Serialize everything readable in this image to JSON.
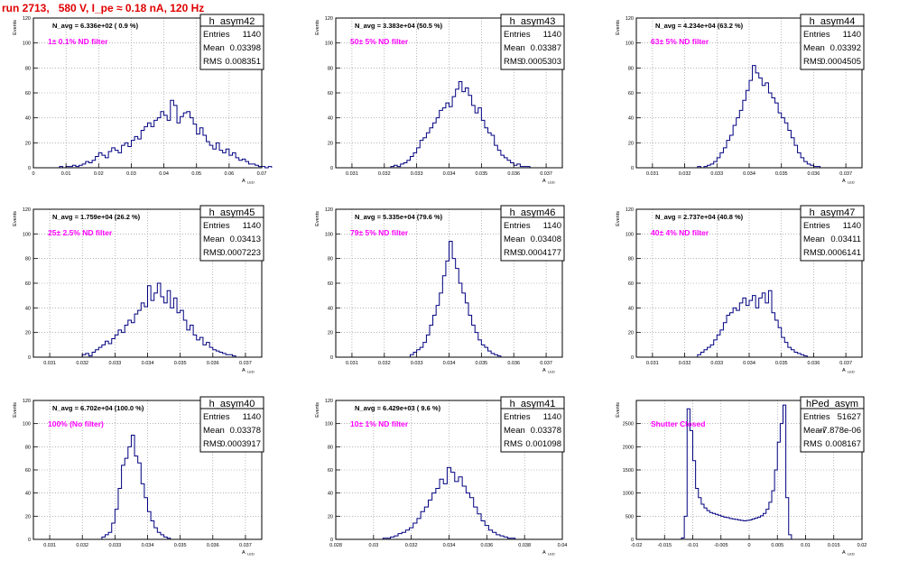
{
  "page": {
    "run_title": "run 2713,   580 V, I_pe ≈ 0.18 nA, 120 Hz"
  },
  "labels": {
    "y_axis": "Events",
    "x_axis": "A",
    "x_axis_sub": "LED"
  },
  "colors": {
    "histogram": "#000080",
    "annotation": "#ff00ff",
    "title": "#e00000",
    "grid": "#888888"
  },
  "chart_data": [
    {
      "type": "bar",
      "name": "h_asym42",
      "header": "N_avg = 6.336e+02 ( 0.9 %)",
      "filter": "1± 0.1% ND filter",
      "stats": [
        {
          "k": "Entries",
          "v": "1140"
        },
        {
          "k": "Mean",
          "v": "0.03398"
        },
        {
          "k": "RMS",
          "v": "0.008351"
        }
      ],
      "xlim": [
        0,
        0.07
      ],
      "ylim": [
        0,
        120
      ],
      "xticks": [
        "0",
        "0.01",
        "0.02",
        "0.03",
        "0.04",
        "0.05",
        "0.06",
        "0.07"
      ],
      "yticks": [
        "0",
        "20",
        "40",
        "60",
        "80",
        "100",
        "120"
      ],
      "grid": true,
      "stats_position": "top-right",
      "bins": {
        "start": 0.008,
        "width": 0.001,
        "counts": [
          1,
          0,
          1,
          1,
          2,
          1,
          2,
          3,
          5,
          4,
          6,
          9,
          12,
          10,
          8,
          13,
          16,
          14,
          12,
          18,
          20,
          17,
          22,
          25,
          23,
          30,
          33,
          36,
          33,
          38,
          40,
          45,
          42,
          38,
          54,
          50,
          36,
          41,
          44,
          45,
          40,
          35,
          27,
          32,
          26,
          21,
          18,
          15,
          20,
          14,
          12,
          15,
          10,
          12,
          8,
          6,
          7,
          5,
          3,
          3,
          2,
          1,
          1,
          0,
          1
        ]
      }
    },
    {
      "type": "bar",
      "name": "h_asym43",
      "header": "N_avg = 3.383e+04 (50.5 %)",
      "filter": "50± 5% ND filter",
      "stats": [
        {
          "k": "Entries",
          "v": "1140"
        },
        {
          "k": "Mean",
          "v": "0.03387"
        },
        {
          "k": "RMS",
          "v": "0.0005303"
        }
      ],
      "xlim": [
        0.0305,
        0.0375
      ],
      "ylim": [
        0,
        120
      ],
      "xticks": [
        "0.031",
        "0.032",
        "0.033",
        "0.034",
        "0.035",
        "0.036",
        "0.037"
      ],
      "yticks": [
        "0",
        "20",
        "40",
        "60",
        "80",
        "100",
        "120"
      ],
      "grid": true,
      "stats_position": "top-right",
      "bins": {
        "start": 0.0322,
        "width": 0.0001,
        "counts": [
          1,
          2,
          1,
          3,
          4,
          6,
          9,
          12,
          16,
          22,
          24,
          28,
          32,
          36,
          40,
          46,
          48,
          52,
          49,
          57,
          63,
          69,
          61,
          64,
          58,
          50,
          44,
          48,
          38,
          32,
          28,
          26,
          18,
          14,
          10,
          8,
          6,
          4,
          2,
          3,
          1,
          1,
          1
        ]
      }
    },
    {
      "type": "bar",
      "name": "h_asym44",
      "header": "N_avg = 4.234e+04 (63.2 %)",
      "filter": "63± 5% ND filter",
      "stats": [
        {
          "k": "Entries",
          "v": "1140"
        },
        {
          "k": "Mean",
          "v": "0.03392"
        },
        {
          "k": "RMS",
          "v": "0.0004505"
        }
      ],
      "xlim": [
        0.0305,
        0.0375
      ],
      "ylim": [
        0,
        120
      ],
      "xticks": [
        "0.031",
        "0.032",
        "0.033",
        "0.034",
        "0.035",
        "0.036",
        "0.037"
      ],
      "yticks": [
        "0",
        "20",
        "40",
        "60",
        "80",
        "100",
        "120"
      ],
      "grid": true,
      "stats_position": "top-right",
      "bins": {
        "start": 0.0324,
        "width": 0.0001,
        "counts": [
          1,
          0,
          1,
          2,
          3,
          5,
          8,
          12,
          16,
          22,
          26,
          34,
          40,
          46,
          54,
          62,
          70,
          82,
          76,
          72,
          66,
          68,
          60,
          56,
          52,
          44,
          40,
          36,
          30,
          24,
          18,
          12,
          8,
          5,
          3,
          2,
          1,
          1
        ]
      }
    },
    {
      "type": "bar",
      "name": "h_asym45",
      "header": "N_avg = 1.759e+04 (26.2 %)",
      "filter": "25± 2.5% ND filter",
      "stats": [
        {
          "k": "Entries",
          "v": "1140"
        },
        {
          "k": "Mean",
          "v": "0.03413"
        },
        {
          "k": "RMS",
          "v": "0.0007223"
        }
      ],
      "xlim": [
        0.0305,
        0.0375
      ],
      "ylim": [
        0,
        120
      ],
      "xticks": [
        "0.031",
        "0.032",
        "0.033",
        "0.034",
        "0.035",
        "0.036",
        "0.037"
      ],
      "yticks": [
        "0",
        "20",
        "40",
        "60",
        "80",
        "100",
        "120"
      ],
      "grid": true,
      "stats_position": "top-right",
      "bins": {
        "start": 0.032,
        "width": 0.0001,
        "counts": [
          2,
          3,
          1,
          4,
          6,
          8,
          10,
          13,
          11,
          15,
          18,
          22,
          20,
          26,
          30,
          28,
          35,
          38,
          44,
          41,
          58,
          46,
          52,
          60,
          49,
          44,
          54,
          40,
          48,
          36,
          38,
          30,
          22,
          26,
          18,
          14,
          16,
          10,
          12,
          8,
          6,
          5,
          4,
          3,
          2,
          2,
          1
        ]
      }
    },
    {
      "type": "bar",
      "name": "h_asym46",
      "header": "N_avg = 5.335e+04 (79.6 %)",
      "filter": "79± 5% ND filter",
      "stats": [
        {
          "k": "Entries",
          "v": "1140"
        },
        {
          "k": "Mean",
          "v": "0.03408"
        },
        {
          "k": "RMS",
          "v": "0.0004177"
        }
      ],
      "xlim": [
        0.0305,
        0.0375
      ],
      "ylim": [
        0,
        120
      ],
      "xticks": [
        "0.031",
        "0.032",
        "0.033",
        "0.034",
        "0.035",
        "0.036",
        "0.037"
      ],
      "yticks": [
        "0",
        "20",
        "40",
        "60",
        "80",
        "100",
        "120"
      ],
      "grid": true,
      "stats_position": "top-right",
      "bins": {
        "start": 0.0328,
        "width": 0.0001,
        "counts": [
          2,
          4,
          6,
          8,
          12,
          18,
          26,
          34,
          42,
          52,
          66,
          78,
          94,
          80,
          72,
          60,
          52,
          44,
          34,
          26,
          20,
          14,
          10,
          8,
          5,
          3,
          2,
          1
        ]
      }
    },
    {
      "type": "bar",
      "name": "h_asym47",
      "header": "N_avg = 2.737e+04 (40.8 %)",
      "filter": "40± 4% ND filter",
      "stats": [
        {
          "k": "Entries",
          "v": "1140"
        },
        {
          "k": "Mean",
          "v": "0.03411"
        },
        {
          "k": "RMS",
          "v": "0.0006141"
        }
      ],
      "xlim": [
        0.0305,
        0.0375
      ],
      "ylim": [
        0,
        120
      ],
      "xticks": [
        "0.031",
        "0.032",
        "0.033",
        "0.034",
        "0.035",
        "0.036",
        "0.037"
      ],
      "yticks": [
        "0",
        "20",
        "40",
        "60",
        "80",
        "100",
        "120"
      ],
      "grid": true,
      "stats_position": "top-right",
      "bins": {
        "start": 0.0324,
        "width": 0.0001,
        "counts": [
          2,
          4,
          6,
          8,
          10,
          14,
          18,
          22,
          28,
          34,
          36,
          40,
          38,
          44,
          48,
          42,
          46,
          50,
          40,
          48,
          52,
          44,
          54,
          36,
          30,
          24,
          16,
          12,
          8,
          6,
          4,
          3,
          2,
          1
        ]
      }
    },
    {
      "type": "bar",
      "name": "h_asym40",
      "header": "N_avg = 6.702e+04 (100.0 %)",
      "filter": "100% (No filter)",
      "stats": [
        {
          "k": "Entries",
          "v": "1140"
        },
        {
          "k": "Mean",
          "v": "0.03378"
        },
        {
          "k": "RMS",
          "v": "0.0003917"
        }
      ],
      "xlim": [
        0.0305,
        0.0375
      ],
      "ylim": [
        0,
        120
      ],
      "xticks": [
        "0.031",
        "0.032",
        "0.033",
        "0.034",
        "0.035",
        "0.036",
        "0.037"
      ],
      "yticks": [
        "0",
        "20",
        "40",
        "60",
        "80",
        "100",
        "120"
      ],
      "grid": true,
      "stats_position": "top-right",
      "bins": {
        "start": 0.0326,
        "width": 0.0001,
        "counts": [
          2,
          4,
          6,
          14,
          26,
          44,
          64,
          70,
          80,
          90,
          72,
          66,
          48,
          36,
          24,
          16,
          10,
          6,
          4,
          2,
          1
        ]
      }
    },
    {
      "type": "bar",
      "name": "h_asym41",
      "header": "N_avg = 6.429e+03 ( 9.6 %)",
      "filter": "10± 1% ND filter",
      "stats": [
        {
          "k": "Entries",
          "v": "1140"
        },
        {
          "k": "Mean",
          "v": "0.03378"
        },
        {
          "k": "RMS",
          "v": "0.001098"
        }
      ],
      "xlim": [
        0.028,
        0.04
      ],
      "ylim": [
        0,
        120
      ],
      "xticks": [
        "0.028",
        "0.03",
        "0.032",
        "0.034",
        "0.036",
        "0.038",
        "0.04"
      ],
      "yticks": [
        "0",
        "20",
        "40",
        "60",
        "80",
        "100",
        "120"
      ],
      "grid": true,
      "stats_position": "top-right",
      "bins": {
        "start": 0.0305,
        "width": 0.0002,
        "counts": [
          1,
          1,
          2,
          3,
          5,
          6,
          8,
          10,
          14,
          18,
          24,
          28,
          34,
          40,
          44,
          52,
          48,
          62,
          58,
          50,
          54,
          46,
          40,
          36,
          28,
          22,
          16,
          12,
          8,
          6,
          4,
          3,
          2,
          1,
          1
        ]
      }
    },
    {
      "type": "bar",
      "name": "hPed_asym",
      "header": "",
      "filter": "Shutter Closed",
      "stats": [
        {
          "k": "Entries",
          "v": "51627"
        },
        {
          "k": "Mean",
          "v": "-7.878e-06"
        },
        {
          "k": "RMS",
          "v": "0.008167"
        }
      ],
      "xlim": [
        -0.02,
        0.02
      ],
      "ylim": [
        0,
        3000
      ],
      "xticks": [
        "-0.02",
        "-0.015",
        "-0.01",
        "-0.005",
        "0",
        "0.005",
        "0.01",
        "0.015",
        "0.02"
      ],
      "yticks": [
        "0",
        "500",
        "1000",
        "1500",
        "2000",
        "2500"
      ],
      "grid": true,
      "stats_position": "top-right",
      "bins": {
        "start": -0.012,
        "width": 0.0005,
        "counts": [
          30,
          500,
          2820,
          2350,
          1700,
          1100,
          900,
          760,
          680,
          620,
          580,
          560,
          540,
          520,
          500,
          480,
          470,
          450,
          440,
          430,
          420,
          410,
          400,
          410,
          420,
          440,
          460,
          480,
          510,
          560,
          650,
          800,
          1050,
          1500,
          2100,
          2500,
          2900,
          900,
          100
        ]
      }
    }
  ]
}
